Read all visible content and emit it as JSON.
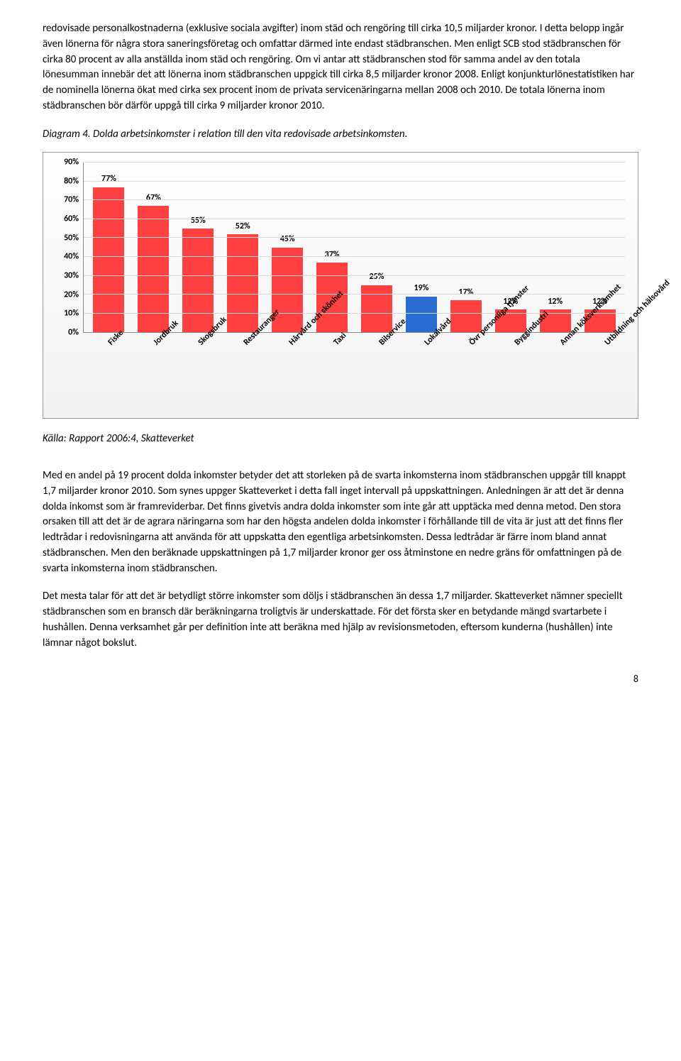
{
  "para1": "redovisade personalkostnaderna (exklusive sociala avgifter) inom städ och rengöring till cirka 10,5 miljarder kronor. I detta belopp ingår även lönerna för några stora saneringsföretag och omfattar därmed inte endast städbranschen. Men enligt SCB stod städbranschen för cirka 80 procent av alla anställda inom städ och rengöring. Om vi antar att städbranschen stod för samma andel av den totala lönesumman innebär det att lönerna inom städbranschen uppgick till cirka 8,5 miljarder kronor 2008. Enligt konjunkturlönestatistiken har de nominella lönerna ökat med cirka sex procent inom de privata servicenäringarna mellan 2008 och 2010. De totala lönerna inom städbranschen bör därför uppgå till cirka 9 miljarder kronor 2010.",
  "caption": "Diagram 4. Dolda arbetsinkomster i relation till den vita redovisade arbetsinkomsten.",
  "chart": {
    "y_ticks": [
      "0%",
      "10%",
      "20%",
      "30%",
      "40%",
      "50%",
      "60%",
      "70%",
      "80%",
      "90%"
    ],
    "ymax": 90,
    "bar_default_color": "#ff4040",
    "bar_highlight_color": "#2a6dd0",
    "items": [
      {
        "label": "Fiske",
        "value": 77,
        "display": "77%",
        "highlight": false
      },
      {
        "label": "Jordbruk",
        "value": 67,
        "display": "67%",
        "highlight": false
      },
      {
        "label": "Skogsbruk",
        "value": 55,
        "display": "55%",
        "highlight": false
      },
      {
        "label": "Restauranger",
        "value": 52,
        "display": "52%",
        "highlight": false
      },
      {
        "label": "Hårvård och skönhet",
        "value": 45,
        "display": "45%",
        "highlight": false
      },
      {
        "label": "Taxi",
        "value": 37,
        "display": "37%",
        "highlight": false
      },
      {
        "label": "Bilservice",
        "value": 25,
        "display": "25%",
        "highlight": false
      },
      {
        "label": "Lokalvård",
        "value": 19,
        "display": "19%",
        "highlight": true
      },
      {
        "label": "Övr personliga tjänster",
        "value": 17,
        "display": "17%",
        "highlight": false
      },
      {
        "label": "Byggindustri",
        "value": 12,
        "display": "12%",
        "highlight": false
      },
      {
        "label": "Annan köksverksamhet",
        "value": 12,
        "display": "12%",
        "highlight": false
      },
      {
        "label": "Utbildning och hälsovård",
        "value": 12,
        "display": "12%",
        "highlight": false
      }
    ]
  },
  "source": "Källa: Rapport 2006:4, Skatteverket",
  "para2": "Med en andel på 19 procent dolda inkomster betyder det att storleken på de svarta inkomsterna inom städbranschen uppgår till knappt 1,7 miljarder kronor 2010. Som synes uppger Skatteverket i detta fall inget intervall på uppskattningen. Anledningen är att det är denna dolda inkomst som är framreviderbar. Det finns givetvis andra dolda inkomster som inte går att upptäcka med denna metod. Den stora orsaken till att det är de agrara näringarna som har den högsta andelen dolda inkomster i förhållande till de vita är just att det finns fler ledtrådar i redovisningarna att använda för att uppskatta den egentliga arbetsinkomsten. Dessa ledtrådar är färre inom bland annat städbranschen. Men den beräknade uppskattningen på 1,7 miljarder kronor ger oss åtminstone en nedre gräns för omfattningen på de svarta inkomsterna inom städbranschen.",
  "para3": "Det mesta talar för att det är betydligt större inkomster som döljs i städbranschen än dessa 1,7 miljarder. Skatteverket nämner speciellt städbranschen som en bransch där beräkningarna troligtvis är underskattade. För det första sker en betydande mängd svartarbete i hushållen. Denna verksamhet går per definition inte att beräkna med hjälp av revisionsmetoden, eftersom kunderna (hushållen) inte lämnar något bokslut.",
  "page_number": "8"
}
